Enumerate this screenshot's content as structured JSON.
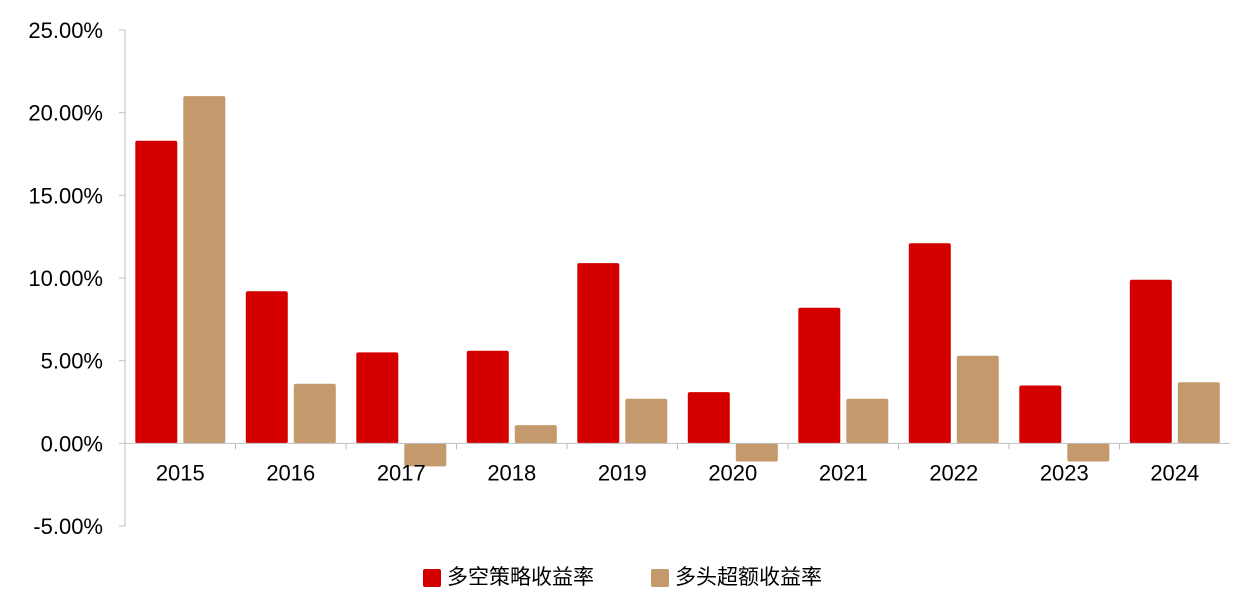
{
  "chart_data": {
    "type": "bar",
    "categories": [
      "2015",
      "2016",
      "2017",
      "2018",
      "2019",
      "2020",
      "2021",
      "2022",
      "2023",
      "2024"
    ],
    "series": [
      {
        "name": "多空策略收益率",
        "color": "#d40000",
        "values": [
          18.3,
          9.2,
          5.5,
          5.6,
          10.9,
          3.1,
          8.2,
          12.1,
          3.5,
          9.9
        ]
      },
      {
        "name": "多头超额收益率",
        "color": "#c49a6c",
        "values": [
          21.0,
          3.6,
          -1.4,
          1.1,
          2.7,
          -1.1,
          2.7,
          5.3,
          -1.1,
          3.7
        ]
      }
    ],
    "ylim": [
      -5,
      25
    ],
    "yticks": [
      -5,
      0,
      5,
      10,
      15,
      20,
      25
    ],
    "ytick_labels": [
      "-5.00%",
      "0.00%",
      "5.00%",
      "10.00%",
      "15.00%",
      "20.00%",
      "25.00%"
    ],
    "grid": false,
    "legend_position": "bottom-center"
  }
}
